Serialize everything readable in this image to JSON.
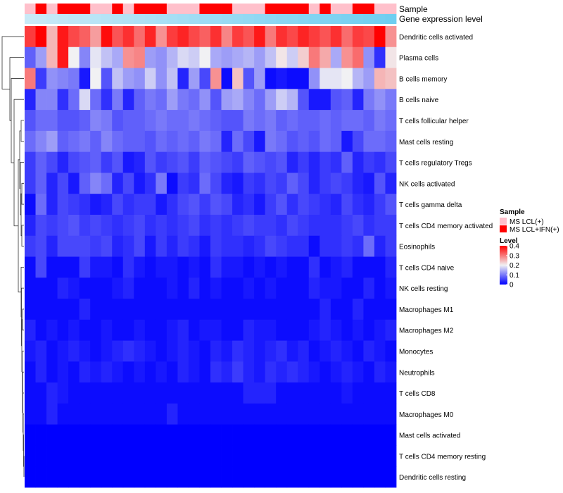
{
  "chart_data": {
    "type": "heatmap",
    "annotation_labels": [
      "Sample",
      "Gene expression level"
    ],
    "rows": [
      "Dendritic cells activated",
      "Plasma cells",
      "B cells memory",
      "B cells naive",
      "T cells follicular helper",
      "Mast cells resting",
      "T cells regulatory  Tregs",
      "NK cells activated",
      "T cells gamma delta",
      "T cells CD4 memory activated",
      "Eosinophils",
      "T cells CD4 naive",
      "NK cells resting",
      "Macrophages M1",
      "Macrophages M2",
      "Monocytes",
      "Neutrophils",
      "T cells CD8",
      "Macrophages M0",
      "Mast cells activated",
      "T cells CD4 memory resting",
      "Dendritic cells resting"
    ],
    "sample_groups": [
      0,
      1,
      0,
      1,
      1,
      1,
      0,
      0,
      1,
      0,
      1,
      1,
      1,
      0,
      0,
      0,
      1,
      1,
      1,
      0,
      0,
      0,
      1,
      1,
      1,
      1,
      0,
      1,
      0,
      0,
      1,
      1,
      0,
      0
    ],
    "expression_level": [
      0.1,
      0.12,
      0.14,
      0.16,
      0.18,
      0.2,
      0.22,
      0.24,
      0.26,
      0.28,
      0.3,
      0.32,
      0.34,
      0.36,
      0.38,
      0.4,
      0.42,
      0.44,
      0.46,
      0.48,
      0.5,
      0.52,
      0.54,
      0.56,
      0.58,
      0.6,
      0.62,
      0.64,
      0.66,
      0.68,
      0.7,
      0.72,
      0.74,
      0.76
    ],
    "values": [
      [
        0.35,
        0.4,
        0.25,
        0.38,
        0.34,
        0.32,
        0.27,
        0.39,
        0.33,
        0.36,
        0.31,
        0.37,
        0.28,
        0.35,
        0.37,
        0.34,
        0.32,
        0.36,
        0.29,
        0.35,
        0.33,
        0.38,
        0.3,
        0.36,
        0.34,
        0.37,
        0.35,
        0.33,
        0.36,
        0.31,
        0.35,
        0.34,
        0.4,
        0.28
      ],
      [
        0.08,
        0.13,
        0.25,
        0.38,
        0.2,
        0.11,
        0.19,
        0.16,
        0.14,
        0.28,
        0.29,
        0.13,
        0.12,
        0.15,
        0.18,
        0.17,
        0.2,
        0.14,
        0.13,
        0.14,
        0.15,
        0.13,
        0.16,
        0.21,
        0.17,
        0.23,
        0.3,
        0.26,
        0.14,
        0.28,
        0.31,
        0.12,
        0.04,
        0.21
      ],
      [
        0.3,
        0.05,
        0.12,
        0.11,
        0.1,
        0.02,
        0.2,
        0.07,
        0.16,
        0.13,
        0.12,
        0.17,
        0.12,
        0.16,
        0.03,
        0.13,
        0.06,
        0.28,
        0.01,
        0.24,
        0.07,
        0.13,
        0.01,
        0.02,
        0.01,
        0.01,
        0.12,
        0.19,
        0.19,
        0.2,
        0.15,
        0.13,
        0.25,
        0.24
      ],
      [
        0.03,
        0.11,
        0.11,
        0.04,
        0.09,
        0.18,
        0.09,
        0.04,
        0.1,
        0.03,
        0.08,
        0.1,
        0.09,
        0.13,
        0.1,
        0.09,
        0.12,
        0.07,
        0.13,
        0.14,
        0.11,
        0.09,
        0.13,
        0.17,
        0.15,
        0.07,
        0.02,
        0.02,
        0.07,
        0.08,
        0.03,
        0.1,
        0.12,
        0.1
      ],
      [
        0.07,
        0.09,
        0.09,
        0.07,
        0.07,
        0.08,
        0.11,
        0.1,
        0.07,
        0.08,
        0.08,
        0.09,
        0.1,
        0.09,
        0.09,
        0.1,
        0.09,
        0.08,
        0.07,
        0.07,
        0.1,
        0.09,
        0.1,
        0.08,
        0.09,
        0.08,
        0.08,
        0.09,
        0.08,
        0.09,
        0.09,
        0.08,
        0.1,
        0.09
      ],
      [
        0.09,
        0.11,
        0.13,
        0.08,
        0.09,
        0.1,
        0.08,
        0.11,
        0.09,
        0.08,
        0.08,
        0.07,
        0.09,
        0.08,
        0.09,
        0.08,
        0.1,
        0.09,
        0.03,
        0.09,
        0.06,
        0.02,
        0.1,
        0.09,
        0.07,
        0.08,
        0.07,
        0.09,
        0.08,
        0.02,
        0.06,
        0.09,
        0.09,
        0.08
      ],
      [
        0.05,
        0.08,
        0.06,
        0.03,
        0.06,
        0.07,
        0.08,
        0.05,
        0.07,
        0.02,
        0.03,
        0.07,
        0.05,
        0.06,
        0.07,
        0.05,
        0.08,
        0.07,
        0.06,
        0.05,
        0.08,
        0.07,
        0.06,
        0.07,
        0.03,
        0.05,
        0.03,
        0.05,
        0.04,
        0.08,
        0.03,
        0.05,
        0.04,
        0.06
      ],
      [
        0.05,
        0.08,
        0.03,
        0.06,
        0.02,
        0.08,
        0.11,
        0.09,
        0.03,
        0.06,
        0.02,
        0.04,
        0.1,
        0.01,
        0.05,
        0.04,
        0.09,
        0.06,
        0.03,
        0.02,
        0.05,
        0.04,
        0.06,
        0.05,
        0.08,
        0.06,
        0.03,
        0.05,
        0.06,
        0.05,
        0.03,
        0.02,
        0.07,
        0.03
      ],
      [
        0.01,
        0.09,
        0.03,
        0.06,
        0.05,
        0.04,
        0.02,
        0.03,
        0.06,
        0.04,
        0.05,
        0.05,
        0.02,
        0.04,
        0.06,
        0.07,
        0.05,
        0.07,
        0.06,
        0.03,
        0.04,
        0.02,
        0.05,
        0.07,
        0.04,
        0.06,
        0.05,
        0.04,
        0.03,
        0.06,
        0.04,
        0.03,
        0.05,
        0.07
      ],
      [
        0.03,
        0.06,
        0.05,
        0.06,
        0.07,
        0.05,
        0.06,
        0.05,
        0.04,
        0.05,
        0.06,
        0.04,
        0.05,
        0.04,
        0.05,
        0.06,
        0.04,
        0.05,
        0.04,
        0.05,
        0.06,
        0.05,
        0.05,
        0.04,
        0.06,
        0.05,
        0.04,
        0.04,
        0.04,
        0.05,
        0.06,
        0.04,
        0.05,
        0.05
      ],
      [
        0.05,
        0.06,
        0.03,
        0.06,
        0.06,
        0.06,
        0.05,
        0.06,
        0.03,
        0.04,
        0.06,
        0.02,
        0.05,
        0.03,
        0.05,
        0.04,
        0.02,
        0.05,
        0.04,
        0.04,
        0.03,
        0.04,
        0.06,
        0.05,
        0.04,
        0.04,
        0.01,
        0.04,
        0.04,
        0.05,
        0.04,
        0.09,
        0.03,
        0.05
      ],
      [
        0.01,
        0.06,
        0.01,
        0.01,
        0.01,
        0.05,
        0.02,
        0.02,
        0.01,
        0.04,
        0.02,
        0.01,
        0.02,
        0.02,
        0.01,
        0.02,
        0.01,
        0.04,
        0.02,
        0.02,
        0.01,
        0.02,
        0.01,
        0.02,
        0.01,
        0.01,
        0.04,
        0.01,
        0.02,
        0.03,
        0.01,
        0.01,
        0.01,
        0.03
      ],
      [
        0.01,
        0.01,
        0.01,
        0.03,
        0.02,
        0.01,
        0.01,
        0.01,
        0.02,
        0.03,
        0.01,
        0.01,
        0.01,
        0.02,
        0.01,
        0.03,
        0.01,
        0.02,
        0.01,
        0.01,
        0.02,
        0.01,
        0.02,
        0.01,
        0.01,
        0.01,
        0.03,
        0.02,
        0.02,
        0.01,
        0.01,
        0.03,
        0.01,
        0.02
      ],
      [
        0.01,
        0.01,
        0.01,
        0.01,
        0.01,
        0.03,
        0.01,
        0.01,
        0.01,
        0.01,
        0.01,
        0.01,
        0.01,
        0.01,
        0.01,
        0.01,
        0.01,
        0.01,
        0.01,
        0.01,
        0.01,
        0.01,
        0.01,
        0.01,
        0.01,
        0.01,
        0.01,
        0.03,
        0.01,
        0.01,
        0.03,
        0.01,
        0.01,
        0.01
      ],
      [
        0.03,
        0.01,
        0.02,
        0.01,
        0.02,
        0.01,
        0.01,
        0.02,
        0.01,
        0.01,
        0.02,
        0.01,
        0.01,
        0.02,
        0.03,
        0.01,
        0.02,
        0.02,
        0.01,
        0.01,
        0.03,
        0.02,
        0.02,
        0.01,
        0.01,
        0.01,
        0.02,
        0.03,
        0.02,
        0.01,
        0.02,
        0.01,
        0.02,
        0.03
      ],
      [
        0.02,
        0.03,
        0.01,
        0.02,
        0.03,
        0.02,
        0.01,
        0.02,
        0.03,
        0.04,
        0.03,
        0.02,
        0.01,
        0.02,
        0.03,
        0.02,
        0.01,
        0.03,
        0.02,
        0.04,
        0.03,
        0.02,
        0.03,
        0.04,
        0.02,
        0.03,
        0.01,
        0.02,
        0.03,
        0.02,
        0.01,
        0.03,
        0.02,
        0.01
      ],
      [
        0.01,
        0.03,
        0.01,
        0.02,
        0.01,
        0.03,
        0.02,
        0.03,
        0.02,
        0.01,
        0.02,
        0.01,
        0.02,
        0.01,
        0.03,
        0.02,
        0.01,
        0.04,
        0.03,
        0.05,
        0.03,
        0.02,
        0.04,
        0.03,
        0.04,
        0.03,
        0.02,
        0.01,
        0.02,
        0.03,
        0.02,
        0.01,
        0.03,
        0.02
      ],
      [
        0.01,
        0.01,
        0.03,
        0.02,
        0.01,
        0.01,
        0.01,
        0.01,
        0.01,
        0.01,
        0.01,
        0.01,
        0.01,
        0.01,
        0.01,
        0.01,
        0.01,
        0.01,
        0.01,
        0.01,
        0.03,
        0.03,
        0.03,
        0.01,
        0.01,
        0.01,
        0.01,
        0.01,
        0.01,
        0.02,
        0.01,
        0.01,
        0.01,
        0.01
      ],
      [
        0.01,
        0.01,
        0.03,
        0.01,
        0.01,
        0.01,
        0.01,
        0.01,
        0.01,
        0.01,
        0.01,
        0.01,
        0.01,
        0.03,
        0.01,
        0.01,
        0.01,
        0.01,
        0.01,
        0.01,
        0.01,
        0.01,
        0.01,
        0.01,
        0.01,
        0.01,
        0.01,
        0.01,
        0.01,
        0.01,
        0.01,
        0.01,
        0.01,
        0.01
      ],
      [
        0.0,
        0.0,
        0.0,
        0.0,
        0.0,
        0.0,
        0.0,
        0.0,
        0.0,
        0.0,
        0.0,
        0.0,
        0.0,
        0.0,
        0.0,
        0.0,
        0.0,
        0.0,
        0.0,
        0.0,
        0.0,
        0.0,
        0.0,
        0.0,
        0.0,
        0.0,
        0.0,
        0.0,
        0.0,
        0.0,
        0.0,
        0.0,
        0.0,
        0.0
      ],
      [
        0.0,
        0.0,
        0.0,
        0.0,
        0.0,
        0.0,
        0.0,
        0.0,
        0.0,
        0.0,
        0.0,
        0.0,
        0.0,
        0.0,
        0.0,
        0.0,
        0.0,
        0.0,
        0.0,
        0.0,
        0.0,
        0.0,
        0.0,
        0.0,
        0.0,
        0.0,
        0.0,
        0.0,
        0.0,
        0.0,
        0.0,
        0.0,
        0.0,
        0.0
      ],
      [
        0.0,
        0.0,
        0.0,
        0.0,
        0.0,
        0.0,
        0.0,
        0.0,
        0.0,
        0.0,
        0.0,
        0.0,
        0.0,
        0.0,
        0.0,
        0.0,
        0.0,
        0.0,
        0.0,
        0.0,
        0.0,
        0.0,
        0.0,
        0.0,
        0.0,
        0.0,
        0.0,
        0.0,
        0.0,
        0.0,
        0.0,
        0.0,
        0.0,
        0.0
      ]
    ],
    "color_scale": {
      "min": 0,
      "max": 0.4,
      "stops": [
        [
          0,
          "#0000ff"
        ],
        [
          0.2,
          "#f1f1f3"
        ],
        [
          0.4,
          "#ff0000"
        ]
      ]
    },
    "legend": {
      "sample_title": "Sample",
      "sample_items": [
        {
          "label": "MS LCL(+)",
          "color": "#ffc0cb"
        },
        {
          "label": "MS LCL+IFN(+)",
          "color": "#ff0000"
        }
      ],
      "level_title": "Level",
      "level_ticks": [
        "0.4",
        "0.3",
        "0.2",
        "0.1",
        "0"
      ],
      "level_tick_values": [
        0.4,
        0.3,
        0.2,
        0.1,
        0
      ]
    },
    "expression_scale": {
      "low": "#d7eef8",
      "high": "#4ec4ee"
    }
  }
}
